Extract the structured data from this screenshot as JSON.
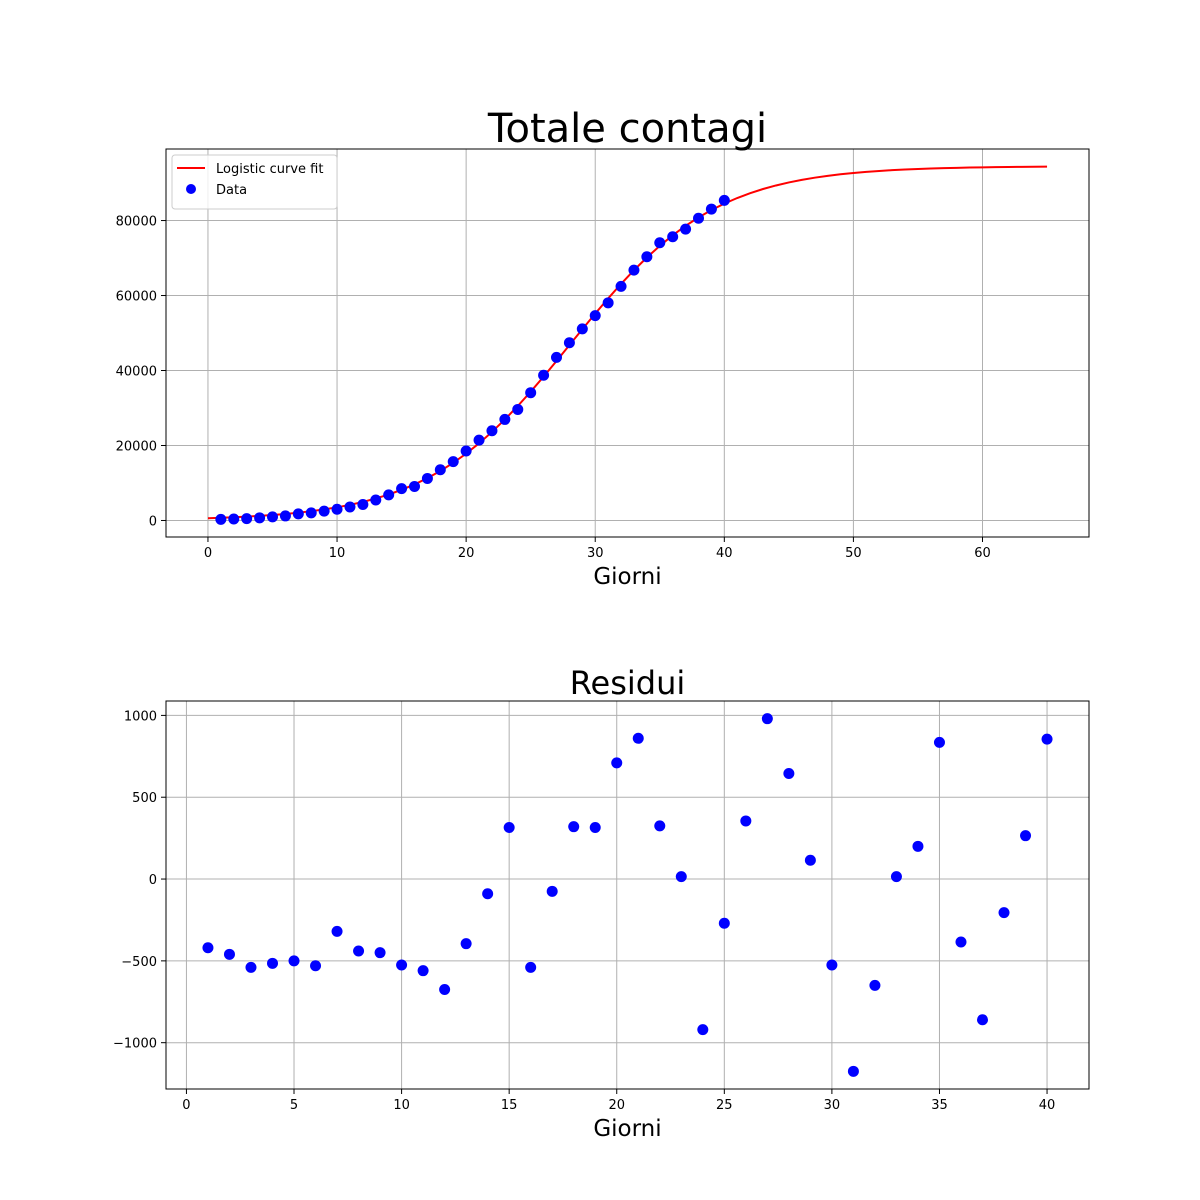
{
  "chart_data": [
    {
      "type": "scatter",
      "title": "Totale contagi",
      "xlabel": "Giorni",
      "xlim": [
        -3.25,
        68.25
      ],
      "ylim": [
        -4407,
        99081
      ],
      "xticks": [
        0,
        10,
        20,
        30,
        40,
        50,
        60
      ],
      "yticks": [
        0,
        20000,
        40000,
        60000,
        80000
      ],
      "grid": true,
      "legend": "upper left",
      "series": [
        {
          "name": "Logistic curve fit",
          "type": "line",
          "color": "#ff0000",
          "x": [
            0,
            1,
            2,
            3,
            4,
            5,
            6,
            7,
            8,
            9,
            10,
            11,
            12,
            13,
            14,
            15,
            16,
            17,
            18,
            19,
            20,
            21,
            22,
            23,
            24,
            25,
            26,
            27,
            28,
            29,
            30,
            31,
            32,
            33,
            34,
            35,
            36,
            37,
            38,
            39,
            40,
            41,
            42,
            43,
            44,
            45,
            46,
            47,
            48,
            49,
            50,
            51,
            52,
            53,
            54,
            55,
            56,
            57,
            58,
            59,
            60,
            61,
            62,
            63,
            64,
            65
          ],
          "values": [
            600,
            717,
            857,
            1024,
            1223,
            1460,
            1742,
            2078,
            2476,
            2949,
            3508,
            4168,
            4945,
            5859,
            6928,
            8175,
            9618,
            11286,
            13198,
            15373,
            17830,
            20575,
            23613,
            26938,
            30533,
            34351,
            38368,
            42529,
            46759,
            50999,
            55173,
            59229,
            63101,
            66752,
            70140,
            73244,
            76056,
            78580,
            80818,
            82793,
            84511,
            86011,
            87298,
            88409,
            89353,
            90161,
            90848,
            91427,
            91918,
            92339,
            92683,
            92975,
            93223,
            93435,
            93611,
            93750,
            93871,
            93974,
            94058,
            94133,
            94189,
            94246,
            94283,
            94321,
            94349,
            94377
          ]
        },
        {
          "name": "Data",
          "type": "scatter",
          "color": "#0000ff",
          "x": [
            1,
            2,
            3,
            4,
            5,
            6,
            7,
            8,
            9,
            10,
            11,
            12,
            13,
            14,
            15,
            16,
            17,
            18,
            19,
            20,
            21,
            22,
            23,
            24,
            25,
            26,
            27,
            28,
            29,
            30,
            31,
            32,
            33,
            34,
            35,
            36,
            37,
            38,
            39,
            40
          ],
          "values": [
            297,
            397,
            484,
            708,
            960,
            1212,
            1758,
            2036,
            2499,
            2983,
            3608,
            4270,
            5464,
            6838,
            8490,
            9078,
            11211,
            13518,
            15688,
            18540,
            21435,
            23938,
            26953,
            29613,
            34081,
            38723,
            43509,
            47404,
            51114,
            54648,
            58054,
            62451,
            66767,
            70340,
            74079,
            75671,
            77720,
            80613,
            83058,
            85366
          ]
        }
      ]
    },
    {
      "type": "scatter",
      "title": "Residui",
      "xlabel": "Giorni",
      "xlim": [
        -0.95,
        41.95
      ],
      "ylim": [
        -1283,
        1088
      ],
      "xticks": [
        0,
        5,
        10,
        15,
        20,
        25,
        30,
        35,
        40
      ],
      "yticks": [
        {
          "value": -1000,
          "label": "−1000"
        },
        {
          "value": -500,
          "label": "−500"
        },
        0,
        500,
        1000
      ],
      "grid": true,
      "series": [
        {
          "type": "scatter",
          "color": "#0000ff",
          "x": [
            1,
            2,
            3,
            4,
            5,
            6,
            7,
            8,
            9,
            10,
            11,
            12,
            13,
            14,
            15,
            16,
            17,
            18,
            19,
            20,
            21,
            22,
            23,
            24,
            25,
            26,
            27,
            28,
            29,
            30,
            31,
            32,
            33,
            34,
            35,
            36,
            37,
            38,
            39,
            40
          ],
          "values": [
            -420,
            -460,
            -540,
            -515,
            -500,
            -530,
            -320,
            -440,
            -450,
            -525,
            -560,
            -675,
            -395,
            -90,
            315,
            -540,
            -75,
            320,
            315,
            710,
            860,
            325,
            15,
            -920,
            -270,
            355,
            980,
            645,
            115,
            -525,
            -1175,
            -650,
            15,
            200,
            835,
            -385,
            -860,
            -205,
            265,
            855
          ]
        }
      ]
    }
  ]
}
